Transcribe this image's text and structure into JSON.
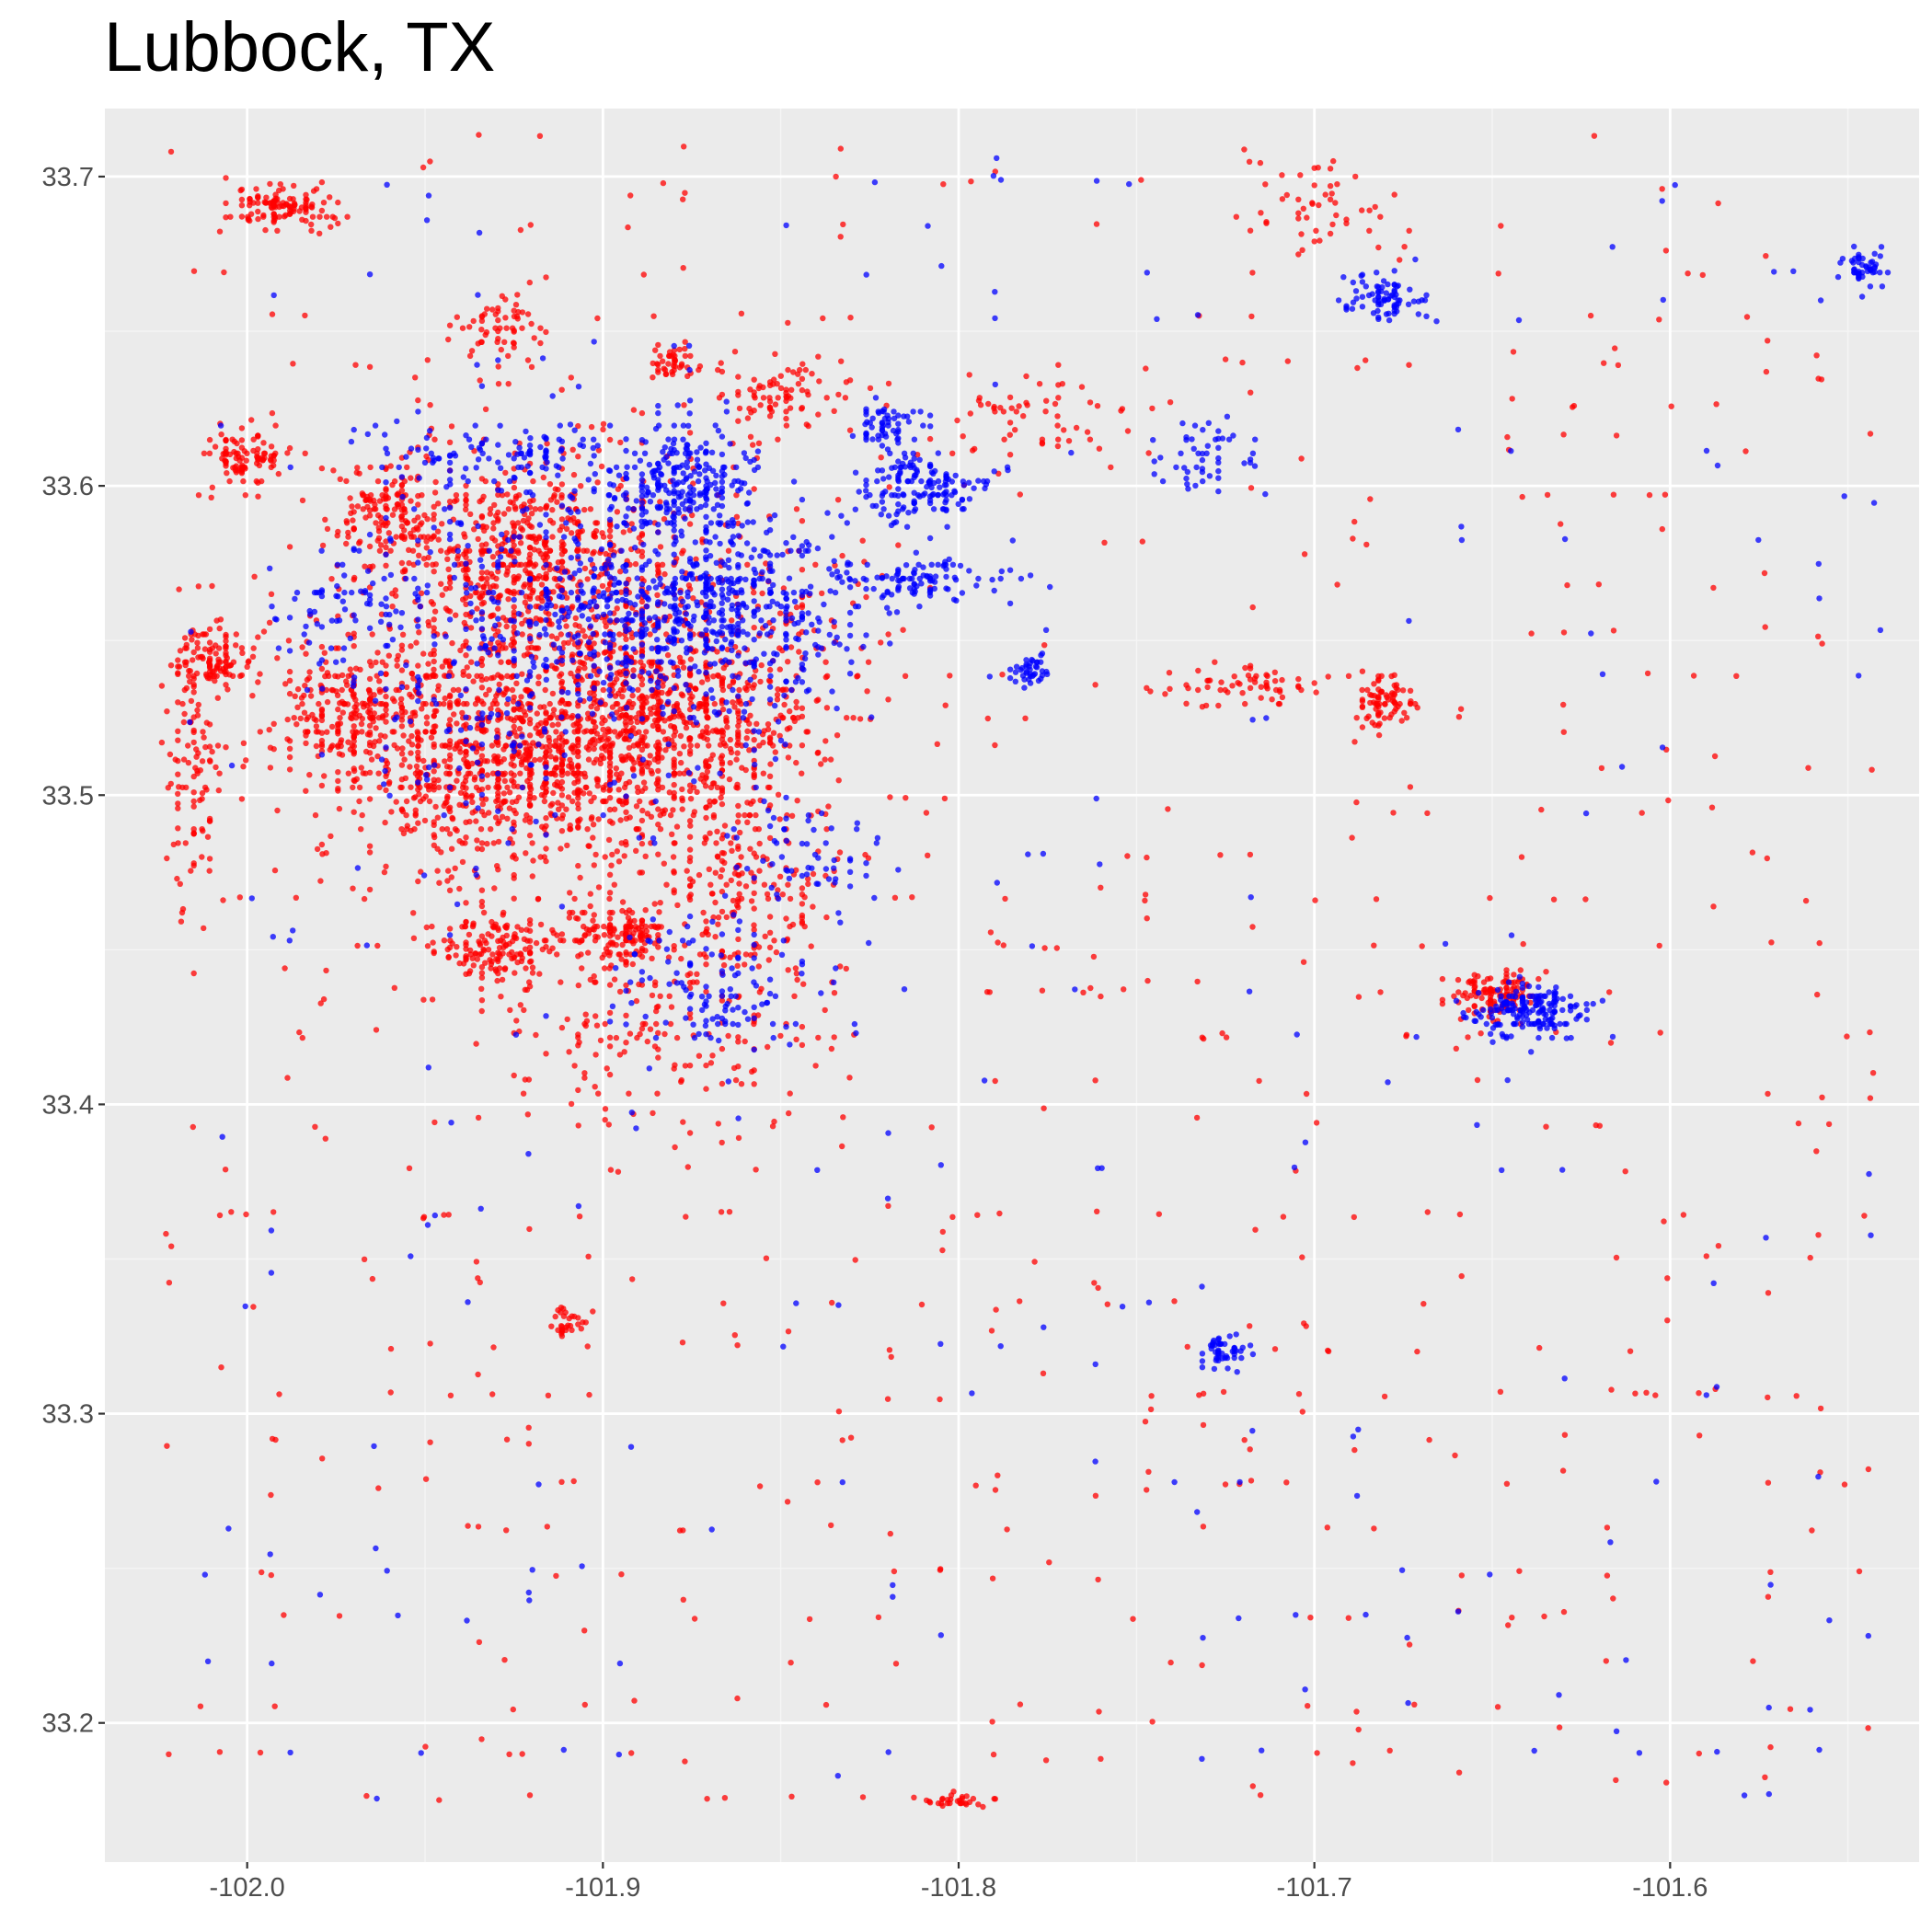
{
  "chart_data": {
    "type": "scatter",
    "title": "Lubbock, TX",
    "xlabel": "",
    "ylabel": "",
    "xlim": [
      -102.04,
      -101.53
    ],
    "ylim": [
      33.155,
      33.722
    ],
    "x_ticks": [
      -102.0,
      -101.9,
      -101.8,
      -101.7,
      -101.6
    ],
    "x_tick_labels": [
      "-102.0",
      "-101.9",
      "-101.8",
      "-101.7",
      "-101.6"
    ],
    "y_ticks": [
      33.2,
      33.3,
      33.4,
      33.5,
      33.6,
      33.7
    ],
    "y_tick_labels": [
      "33.2",
      "33.3",
      "33.4",
      "33.5",
      "33.6",
      "33.7"
    ],
    "grid": true,
    "legend": "none",
    "colors": {
      "panel": "#ebebeb",
      "grid_major": "#ffffff",
      "series_a": "#ff0000",
      "series_b": "#0000ff"
    },
    "series": [
      {
        "color": "#ff0000",
        "clusters": [
          {
            "x": -101.91,
            "y": 33.54,
            "sx": 0.035,
            "sy": 0.035,
            "n": 1500
          },
          {
            "x": -101.93,
            "y": 33.51,
            "sx": 0.018,
            "sy": 0.015,
            "n": 500
          },
          {
            "x": -101.88,
            "y": 33.52,
            "sx": 0.018,
            "sy": 0.015,
            "n": 500
          },
          {
            "x": -101.92,
            "y": 33.58,
            "sx": 0.012,
            "sy": 0.012,
            "n": 250
          },
          {
            "x": -101.96,
            "y": 33.59,
            "sx": 0.008,
            "sy": 0.008,
            "n": 150
          },
          {
            "x": -101.97,
            "y": 33.525,
            "sx": 0.012,
            "sy": 0.01,
            "n": 200
          },
          {
            "x": -102.01,
            "y": 33.545,
            "sx": 0.005,
            "sy": 0.005,
            "n": 100
          },
          {
            "x": -102.0,
            "y": 33.61,
            "sx": 0.006,
            "sy": 0.005,
            "n": 100
          },
          {
            "x": -101.99,
            "y": 33.69,
            "sx": 0.007,
            "sy": 0.003,
            "n": 120
          },
          {
            "x": -101.93,
            "y": 33.45,
            "sx": 0.008,
            "sy": 0.006,
            "n": 150
          },
          {
            "x": -101.895,
            "y": 33.455,
            "sx": 0.006,
            "sy": 0.004,
            "n": 120
          },
          {
            "x": -101.88,
            "y": 33.43,
            "sx": 0.02,
            "sy": 0.02,
            "n": 200
          },
          {
            "x": -101.86,
            "y": 33.47,
            "sx": 0.012,
            "sy": 0.015,
            "n": 150
          },
          {
            "x": -101.65,
            "y": 33.435,
            "sx": 0.006,
            "sy": 0.004,
            "n": 120
          },
          {
            "x": -101.68,
            "y": 33.53,
            "sx": 0.004,
            "sy": 0.004,
            "n": 80
          },
          {
            "x": -102.015,
            "y": 33.51,
            "sx": 0.004,
            "sy": 0.02,
            "n": 100
          },
          {
            "x": -101.91,
            "y": 33.33,
            "sx": 0.003,
            "sy": 0.003,
            "n": 30
          },
          {
            "x": -101.85,
            "y": 33.63,
            "sx": 0.01,
            "sy": 0.006,
            "n": 80
          },
          {
            "x": -101.88,
            "y": 33.64,
            "sx": 0.003,
            "sy": 0.003,
            "n": 40
          },
          {
            "x": -101.93,
            "y": 33.65,
            "sx": 0.006,
            "sy": 0.006,
            "n": 60
          },
          {
            "x": -101.8,
            "y": 33.175,
            "sx": 0.005,
            "sy": 0.001,
            "n": 30
          },
          {
            "x": -101.72,
            "y": 33.535,
            "sx": 0.012,
            "sy": 0.003,
            "n": 60
          },
          {
            "x": -101.78,
            "y": 33.62,
            "sx": 0.015,
            "sy": 0.008,
            "n": 60
          },
          {
            "x": -101.7,
            "y": 33.69,
            "sx": 0.01,
            "sy": 0.01,
            "n": 50
          }
        ],
        "scatter_n": 650
      },
      {
        "color": "#0000ff",
        "clusters": [
          {
            "x": -101.88,
            "y": 33.6,
            "sx": 0.01,
            "sy": 0.01,
            "n": 250
          },
          {
            "x": -101.86,
            "y": 33.56,
            "sx": 0.015,
            "sy": 0.02,
            "n": 350
          },
          {
            "x": -101.89,
            "y": 33.56,
            "sx": 0.02,
            "sy": 0.01,
            "n": 250
          },
          {
            "x": -101.81,
            "y": 33.6,
            "sx": 0.01,
            "sy": 0.005,
            "n": 150
          },
          {
            "x": -101.81,
            "y": 33.57,
            "sx": 0.012,
            "sy": 0.004,
            "n": 100
          },
          {
            "x": -101.78,
            "y": 33.54,
            "sx": 0.002,
            "sy": 0.002,
            "n": 40
          },
          {
            "x": -101.64,
            "y": 33.43,
            "sx": 0.008,
            "sy": 0.004,
            "n": 180
          },
          {
            "x": -101.68,
            "y": 33.66,
            "sx": 0.006,
            "sy": 0.004,
            "n": 80
          },
          {
            "x": -101.725,
            "y": 33.32,
            "sx": 0.003,
            "sy": 0.003,
            "n": 50
          },
          {
            "x": -101.545,
            "y": 33.67,
            "sx": 0.003,
            "sy": 0.003,
            "n": 50
          },
          {
            "x": -101.82,
            "y": 33.62,
            "sx": 0.005,
            "sy": 0.004,
            "n": 60
          },
          {
            "x": -101.87,
            "y": 33.44,
            "sx": 0.015,
            "sy": 0.012,
            "n": 120
          },
          {
            "x": -101.92,
            "y": 33.55,
            "sx": 0.03,
            "sy": 0.035,
            "n": 400
          },
          {
            "x": -101.93,
            "y": 33.61,
            "sx": 0.015,
            "sy": 0.005,
            "n": 100
          },
          {
            "x": -101.73,
            "y": 33.61,
            "sx": 0.006,
            "sy": 0.006,
            "n": 50
          },
          {
            "x": -101.97,
            "y": 33.56,
            "sx": 0.01,
            "sy": 0.01,
            "n": 60
          },
          {
            "x": -101.84,
            "y": 33.48,
            "sx": 0.01,
            "sy": 0.01,
            "n": 60
          }
        ],
        "scatter_n": 220
      }
    ]
  }
}
